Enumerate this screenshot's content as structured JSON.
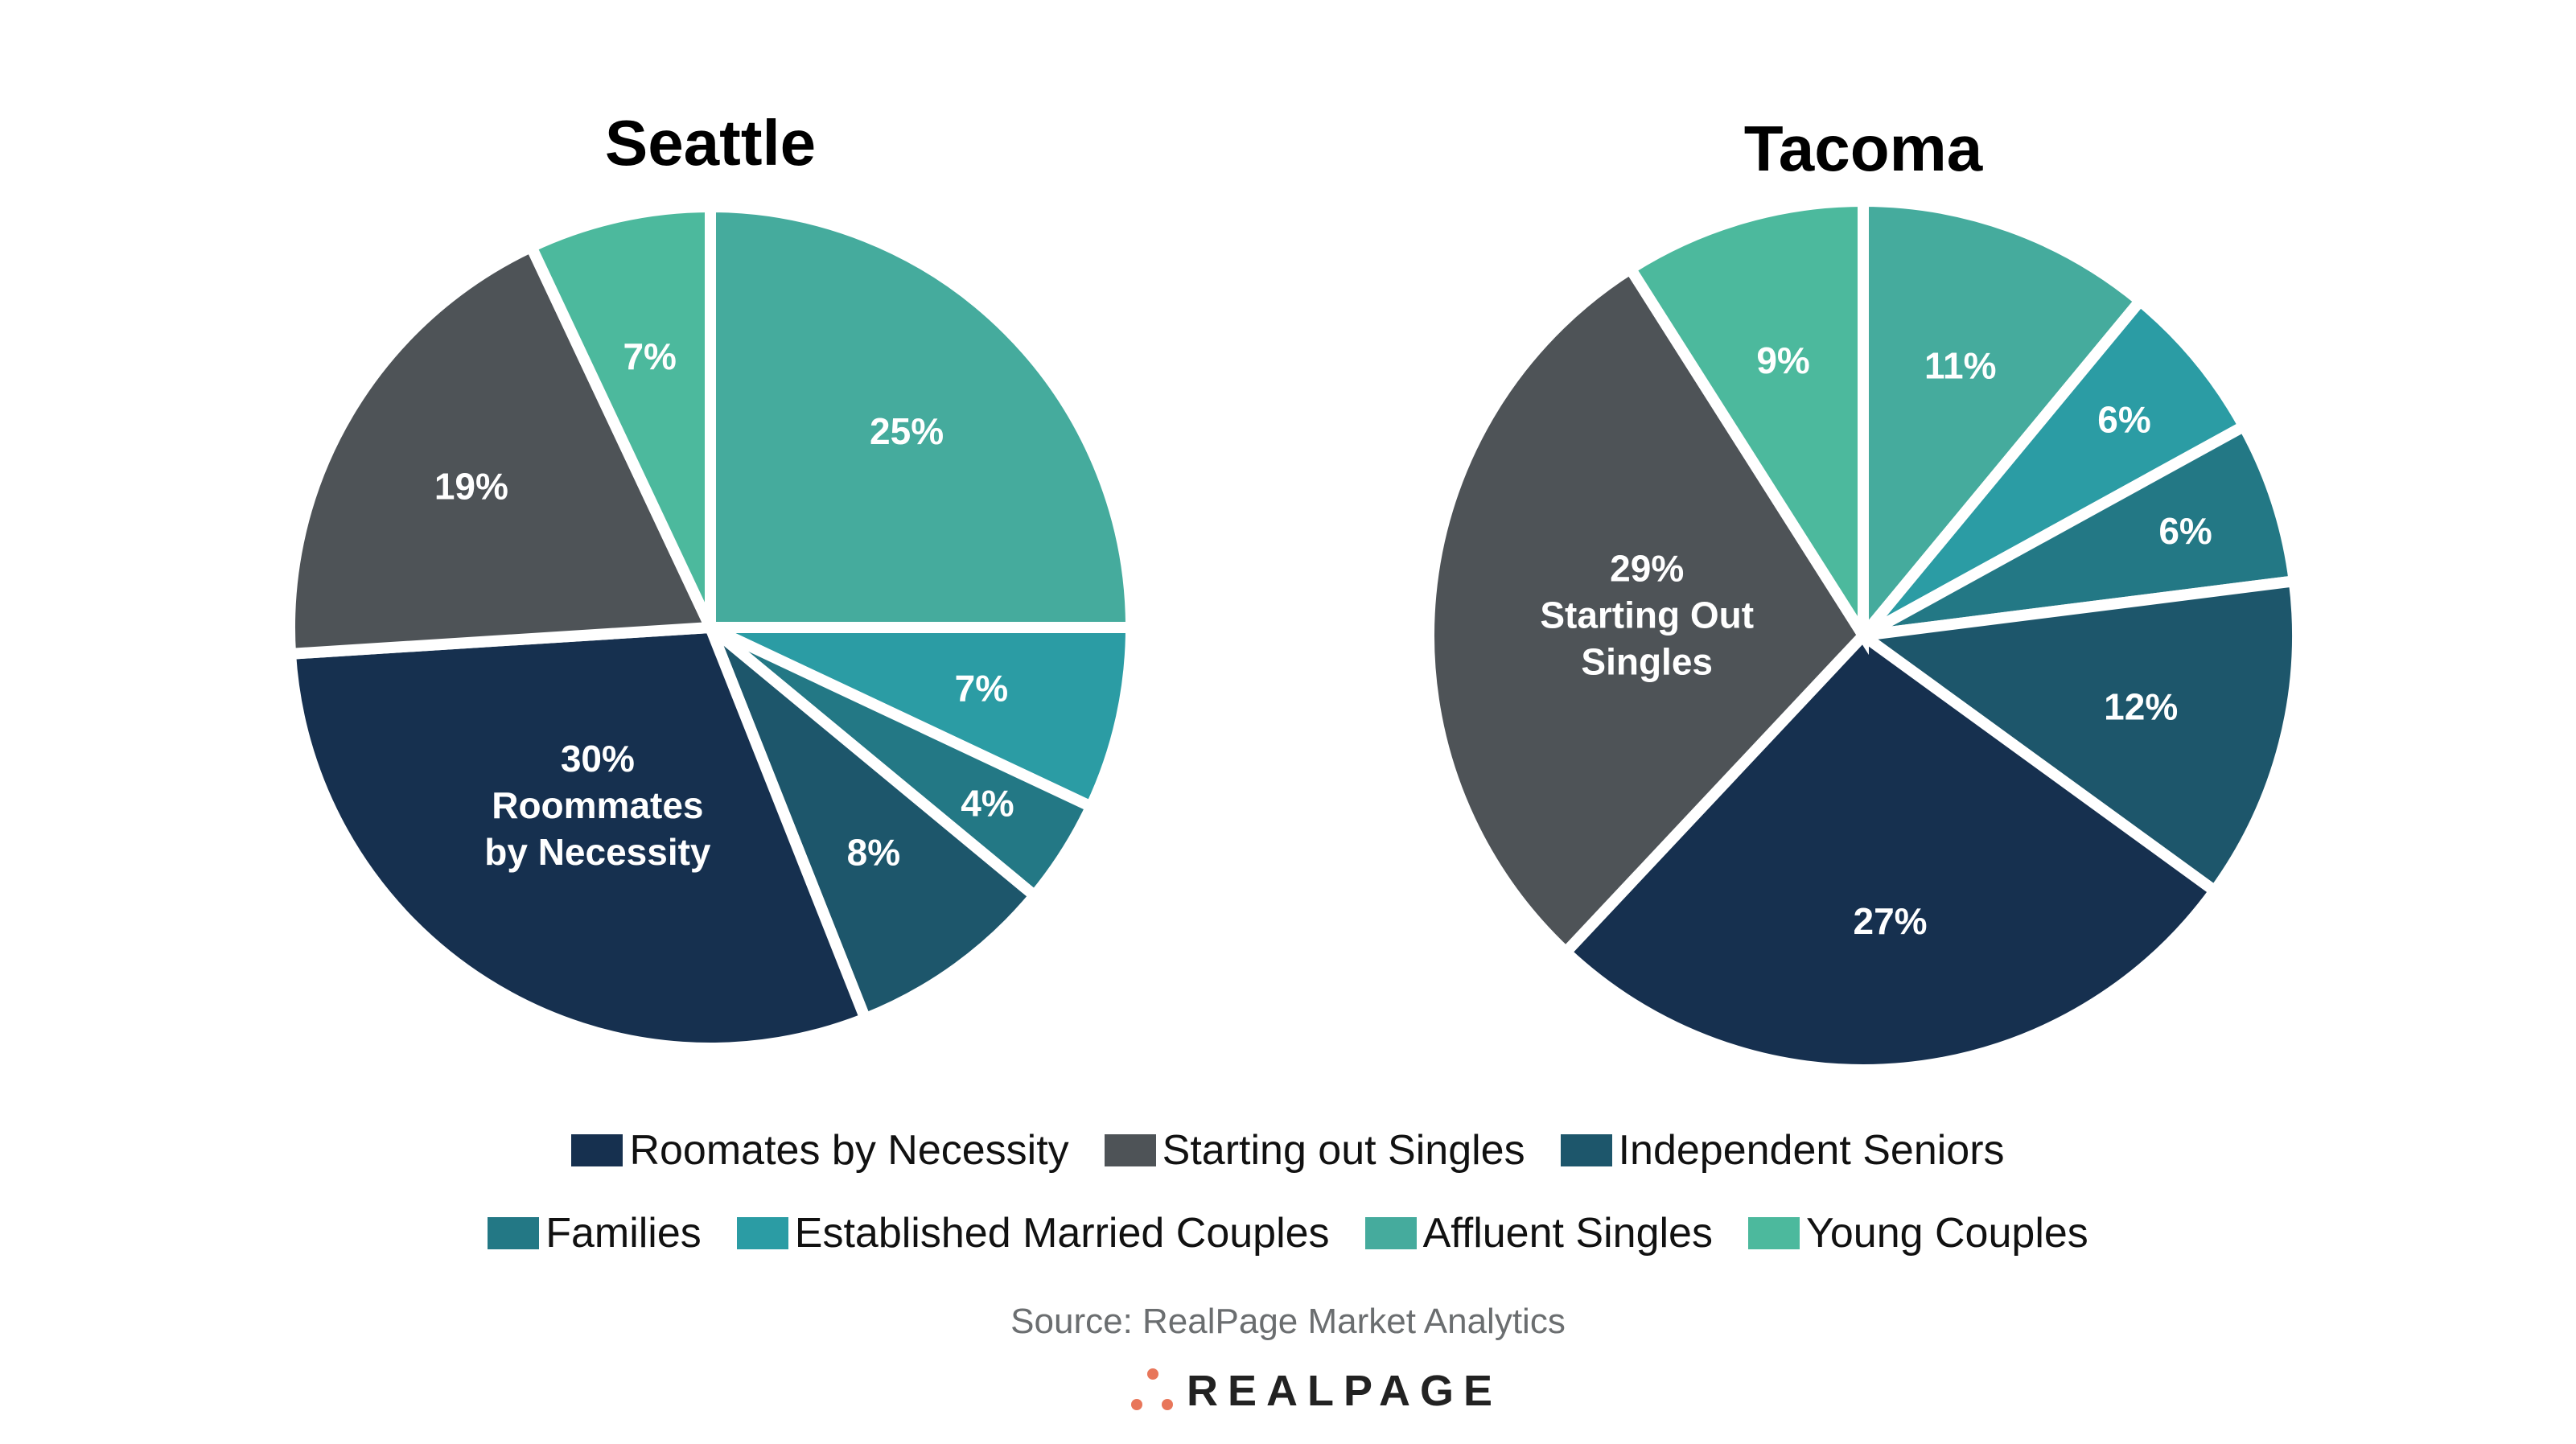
{
  "chart_data": [
    {
      "type": "pie",
      "title": "Seattle",
      "categories": [
        "Affluent Singles",
        "Established Married Couples",
        "Families",
        "Independent Seniors",
        "Roomates by Necessity",
        "Starting out Singles",
        "Young Couples"
      ],
      "values": [
        25,
        7,
        4,
        8,
        30,
        19,
        7
      ],
      "labels": [
        "25%",
        "7%",
        "4%",
        "8%",
        "30%|Roommates|by Necessity",
        "19%",
        "7%"
      ]
    },
    {
      "type": "pie",
      "title": "Tacoma",
      "categories": [
        "Affluent Singles",
        "Established Married Couples",
        "Families",
        "Independent Seniors",
        "Roomates by Necessity",
        "Starting out Singles",
        "Young Couples"
      ],
      "values": [
        11,
        6,
        6,
        12,
        27,
        29,
        9
      ],
      "labels": [
        "11%",
        "6%",
        "6%",
        "12%",
        "27%",
        "29%|Starting Out|Singles",
        "9%"
      ]
    }
  ],
  "colors": {
    "Roomates by Necessity": "#16304f",
    "Starting out Singles": "#4e5357",
    "Independent Seniors": "#1d566b",
    "Families": "#237885",
    "Established Married Couples": "#2b9ca4",
    "Affluent Singles": "#45ab9d",
    "Young Couples": "#4cb99d"
  },
  "legend": {
    "rows": [
      [
        "Roomates by Necessity",
        "Starting out Singles",
        "Independent Seniors"
      ],
      [
        "Families",
        "Established Married Couples",
        "Affluent Singles",
        "Young Couples"
      ]
    ]
  },
  "source": "Source: RealPage Market Analytics",
  "logo": {
    "text": "REALPAGE",
    "dot_color": "#e8765a"
  }
}
